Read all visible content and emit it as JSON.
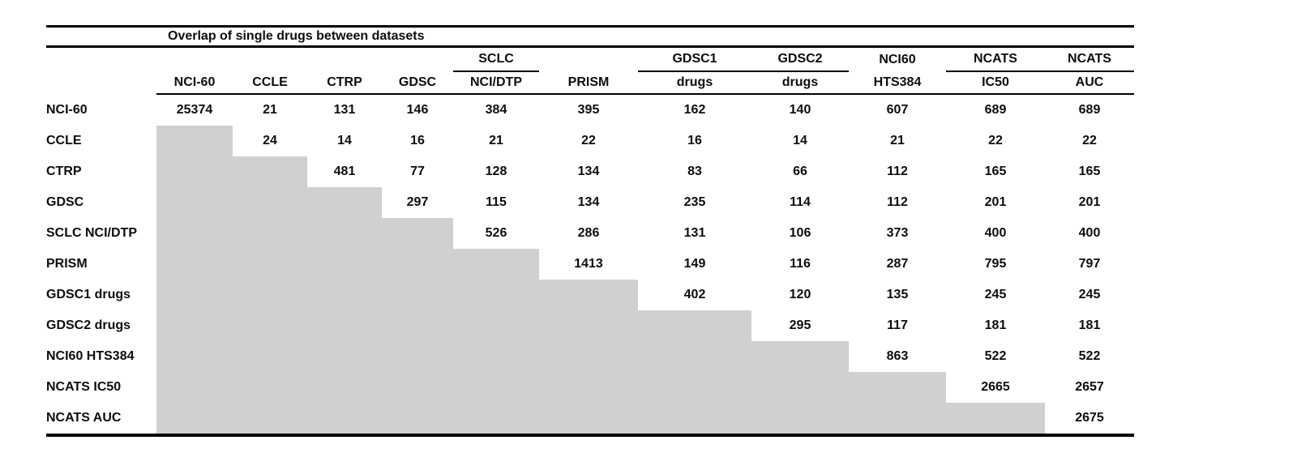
{
  "table": {
    "title": "Overlap of single drugs between datasets",
    "shaded_color": "#d0d0d0",
    "columns": [
      {
        "top": "",
        "bottom": "NCI-60",
        "underline": false
      },
      {
        "top": "",
        "bottom": "CCLE",
        "underline": false
      },
      {
        "top": "",
        "bottom": "CTRP",
        "underline": false
      },
      {
        "top": "",
        "bottom": "GDSC",
        "underline": false
      },
      {
        "top": "SCLC",
        "bottom": "NCI/DTP",
        "underline": true
      },
      {
        "top": "",
        "bottom": "PRISM",
        "underline": false
      },
      {
        "top": "GDSC1",
        "bottom": "drugs",
        "underline": true
      },
      {
        "top": "GDSC2",
        "bottom": "drugs",
        "underline": true
      },
      {
        "top": "NCI60",
        "bottom": "HTS384",
        "underline": false
      },
      {
        "top": "NCATS",
        "bottom": "IC50",
        "underline": true
      },
      {
        "top": "NCATS",
        "bottom": "AUC",
        "underline": true
      }
    ],
    "row_labels": [
      "NCI-60",
      "CCLE",
      "CTRP",
      "GDSC",
      "SCLC NCI/DTP",
      "PRISM",
      "GDSC1 drugs",
      "GDSC2 drugs",
      "NCI60 HTS384",
      "NCATS IC50",
      "NCATS AUC"
    ],
    "matrix": [
      [
        25374,
        21,
        131,
        146,
        384,
        395,
        162,
        140,
        607,
        689,
        689
      ],
      [
        null,
        24,
        14,
        16,
        21,
        22,
        16,
        14,
        21,
        22,
        22
      ],
      [
        null,
        null,
        481,
        77,
        128,
        134,
        83,
        66,
        112,
        165,
        165
      ],
      [
        null,
        null,
        null,
        297,
        115,
        134,
        235,
        114,
        112,
        201,
        201
      ],
      [
        null,
        null,
        null,
        null,
        526,
        286,
        131,
        106,
        373,
        400,
        400
      ],
      [
        null,
        null,
        null,
        null,
        null,
        1413,
        149,
        116,
        287,
        795,
        797
      ],
      [
        null,
        null,
        null,
        null,
        null,
        null,
        402,
        120,
        135,
        245,
        245
      ],
      [
        null,
        null,
        null,
        null,
        null,
        null,
        null,
        295,
        117,
        181,
        181
      ],
      [
        null,
        null,
        null,
        null,
        null,
        null,
        null,
        null,
        863,
        522,
        522
      ],
      [
        null,
        null,
        null,
        null,
        null,
        null,
        null,
        null,
        null,
        2665,
        2657
      ],
      [
        null,
        null,
        null,
        null,
        null,
        null,
        null,
        null,
        null,
        null,
        2675
      ]
    ]
  }
}
